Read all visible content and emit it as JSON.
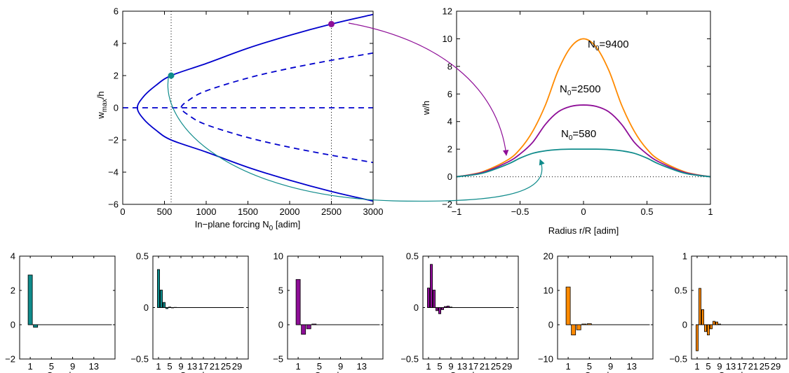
{
  "colors": {
    "blue": "#0000cc",
    "teal": "#0f8b8b",
    "purple": "#8e0e97",
    "orange": "#ff8a00",
    "axis": "#000000"
  },
  "chart_data": [
    {
      "id": "bifurcation",
      "type": "line",
      "xlabel": "In−plane forcing N",
      "xlabel_sub": "0",
      "xlabel_suffix": " [adim]",
      "ylabel": "w",
      "ylabel_sub": "max",
      "ylabel_suffix": "/h",
      "xlim": [
        0,
        3000
      ],
      "ylim": [
        -6,
        6
      ],
      "xticks": [
        0,
        500,
        1000,
        1500,
        2000,
        2500,
        3000
      ],
      "yticks": [
        -6,
        -4,
        -2,
        0,
        2,
        4,
        6
      ],
      "vlines_dotted": [
        580,
        2500
      ],
      "series": [
        {
          "style": "solid",
          "color": "blue",
          "x": [
            3000,
            2500,
            2000,
            1500,
            1000,
            580,
            400,
            250,
            175,
            250,
            400,
            580,
            1000,
            1500,
            2000,
            2500,
            3000
          ],
          "y": [
            5.8,
            5.2,
            4.5,
            3.7,
            2.75,
            2.0,
            1.4,
            0.7,
            0,
            -0.7,
            -1.4,
            -2.0,
            -2.75,
            -3.7,
            -4.5,
            -5.2,
            -5.8
          ]
        },
        {
          "style": "dashed",
          "color": "blue",
          "x": [
            3000,
            2500,
            2000,
            1500,
            1000,
            800,
            700,
            800,
            1000,
            1500,
            2000,
            2500,
            3000
          ],
          "y": [
            3.4,
            2.95,
            2.45,
            1.85,
            1.05,
            0.5,
            0,
            -0.5,
            -1.05,
            -1.85,
            -2.45,
            -2.95,
            -3.4
          ]
        },
        {
          "style": "dashed",
          "color": "blue",
          "x": [
            0,
            3000
          ],
          "y": [
            0,
            0
          ]
        }
      ],
      "markers": [
        {
          "x": 580,
          "y": 2.0,
          "color": "teal"
        },
        {
          "x": 2500,
          "y": 5.2,
          "color": "purple"
        }
      ]
    },
    {
      "id": "deflection",
      "type": "line",
      "xlabel": "Radius r/R [adim]",
      "ylabel": "w/h",
      "xlim": [
        -1,
        1
      ],
      "ylim": [
        -2,
        12
      ],
      "xticks": [
        -1,
        -0.5,
        0,
        0.5,
        1
      ],
      "yticks": [
        -2,
        0,
        2,
        4,
        6,
        8,
        10,
        12
      ],
      "hline_dotted": 0,
      "series": [
        {
          "name": "N",
          "name_sub": "0",
          "name_suffix": "=9400",
          "color": "orange",
          "x": [
            -1,
            -0.8,
            -0.6,
            -0.5,
            -0.4,
            -0.3,
            -0.2,
            -0.1,
            0,
            0.1,
            0.2,
            0.3,
            0.4,
            0.5,
            0.6,
            0.8,
            1
          ],
          "y": [
            0,
            0.35,
            1.2,
            2.0,
            3.3,
            5.2,
            7.7,
            9.4,
            10.0,
            9.4,
            7.7,
            5.2,
            3.3,
            2.0,
            1.2,
            0.35,
            0
          ]
        },
        {
          "name": "N",
          "name_sub": "0",
          "name_suffix": "=2500",
          "color": "purple",
          "x": [
            -1,
            -0.8,
            -0.6,
            -0.5,
            -0.4,
            -0.3,
            -0.2,
            -0.1,
            0,
            0.1,
            0.2,
            0.3,
            0.4,
            0.5,
            0.6,
            0.8,
            1
          ],
          "y": [
            0,
            0.3,
            1.05,
            1.65,
            2.5,
            3.8,
            4.7,
            5.1,
            5.2,
            5.1,
            4.7,
            3.8,
            2.5,
            1.65,
            1.05,
            0.3,
            0
          ]
        },
        {
          "name": "N",
          "name_sub": "0",
          "name_suffix": "=580",
          "color": "teal",
          "x": [
            -1,
            -0.8,
            -0.6,
            -0.5,
            -0.4,
            -0.3,
            -0.2,
            -0.1,
            0,
            0.1,
            0.2,
            0.3,
            0.4,
            0.5,
            0.6,
            0.8,
            1
          ],
          "y": [
            0,
            0.25,
            0.9,
            1.35,
            1.7,
            1.88,
            1.97,
            2.0,
            2.0,
            2.0,
            1.97,
            1.88,
            1.7,
            1.35,
            0.9,
            0.25,
            0
          ]
        }
      ]
    },
    {
      "id": "bar1",
      "type": "bar",
      "color": "teal",
      "xlabel": "Coord. q",
      "xlabel_sub": "i",
      "xlim": [
        -1,
        17
      ],
      "ylim": [
        -2,
        4
      ],
      "xticks": [
        1,
        5,
        9,
        13
      ],
      "yticks": [
        -2,
        0,
        2,
        4
      ],
      "x": [
        1,
        2,
        3,
        4,
        5,
        6,
        7,
        8,
        9,
        10,
        11,
        12,
        13,
        14,
        15,
        16
      ],
      "values": [
        2.9,
        -0.15,
        0,
        0,
        0,
        0,
        0,
        0,
        0,
        0,
        0,
        0,
        0,
        0,
        0,
        0
      ]
    },
    {
      "id": "bar2",
      "type": "bar",
      "color": "teal",
      "xlabel": "Coord. η",
      "xlabel_sub": "i",
      "xlim": [
        -1,
        33
      ],
      "ylim": [
        -0.5,
        0.5
      ],
      "xticks": [
        1,
        5,
        9,
        13,
        17,
        21,
        25,
        29
      ],
      "yticks": [
        -0.5,
        0,
        0.5
      ],
      "x": [
        1,
        2,
        3,
        4,
        5,
        6,
        7,
        8,
        9,
        10,
        11,
        12,
        13,
        14,
        15,
        16,
        17,
        18,
        19,
        20,
        21,
        22,
        23,
        24,
        25,
        26,
        27,
        28,
        29,
        30,
        31
      ],
      "values": [
        0.37,
        0.17,
        0.05,
        -0.01,
        0.005,
        -0.003,
        0.002,
        0,
        0,
        0,
        0,
        0,
        0,
        0,
        0,
        0,
        0,
        0,
        0,
        0,
        0,
        0,
        0,
        0,
        0,
        0,
        0,
        0,
        0,
        0,
        0
      ]
    },
    {
      "id": "bar3",
      "type": "bar",
      "color": "purple",
      "xlabel": "Coord. q",
      "xlabel_sub": "i",
      "xlim": [
        -1,
        17
      ],
      "ylim": [
        -5,
        10
      ],
      "xticks": [
        1,
        5,
        9,
        13
      ],
      "yticks": [
        -5,
        0,
        5,
        10
      ],
      "x": [
        1,
        2,
        3,
        4,
        5,
        6,
        7,
        8,
        9,
        10,
        11,
        12,
        13,
        14,
        15,
        16
      ],
      "values": [
        6.6,
        -1.4,
        -0.6,
        0.1,
        0,
        0,
        0,
        0,
        0,
        0,
        0,
        0,
        0,
        0,
        0,
        0
      ]
    },
    {
      "id": "bar4",
      "type": "bar",
      "color": "purple",
      "xlabel": "Coord. η",
      "xlabel_sub": "i",
      "xlim": [
        -1,
        33
      ],
      "ylim": [
        -0.5,
        0.5
      ],
      "xticks": [
        1,
        5,
        9,
        13,
        17,
        21,
        25,
        29
      ],
      "yticks": [
        -0.5,
        0,
        0.5
      ],
      "x": [
        1,
        2,
        3,
        4,
        5,
        6,
        7,
        8,
        9,
        10,
        11,
        12,
        13,
        14,
        15,
        16,
        17,
        18,
        19,
        20,
        21,
        22,
        23,
        24,
        25,
        26,
        27,
        28,
        29,
        30,
        31
      ],
      "values": [
        0.19,
        0.42,
        0.17,
        -0.03,
        -0.06,
        -0.02,
        0.01,
        0.015,
        0.005,
        0,
        0,
        0,
        0,
        0,
        0,
        0,
        0,
        0,
        0,
        0,
        0,
        0,
        0,
        0,
        0,
        0,
        0,
        0,
        0,
        0,
        0
      ]
    },
    {
      "id": "bar5",
      "type": "bar",
      "color": "orange",
      "xlabel": "Coord. q",
      "xlabel_sub": "i",
      "xlim": [
        -1,
        17
      ],
      "ylim": [
        -10,
        20
      ],
      "xticks": [
        1,
        5,
        9,
        13
      ],
      "yticks": [
        -10,
        0,
        10,
        20
      ],
      "x": [
        1,
        2,
        3,
        4,
        5,
        6,
        7,
        8,
        9,
        10,
        11,
        12,
        13,
        14,
        15,
        16
      ],
      "values": [
        11.0,
        -3.0,
        -1.5,
        0.2,
        0.3,
        0,
        0,
        0,
        0,
        0,
        0,
        0,
        0,
        0,
        0,
        0
      ]
    },
    {
      "id": "bar6",
      "type": "bar",
      "color": "orange",
      "xlabel": "Coord. η",
      "xlabel_sub": "i",
      "xlim": [
        -1,
        33
      ],
      "ylim": [
        -0.5,
        1
      ],
      "xticks": [
        1,
        5,
        9,
        13,
        17,
        21,
        25,
        29
      ],
      "yticks": [
        -0.5,
        0,
        0.5,
        1
      ],
      "x": [
        1,
        2,
        3,
        4,
        5,
        6,
        7,
        8,
        9,
        10,
        11,
        12,
        13,
        14,
        15,
        16,
        17,
        18,
        19,
        20,
        21,
        22,
        23,
        24,
        25,
        26,
        27,
        28,
        29,
        30,
        31
      ],
      "values": [
        -0.38,
        0.53,
        0.22,
        -0.1,
        -0.15,
        -0.06,
        0.05,
        0.04,
        0.01,
        0,
        0,
        0,
        0,
        0,
        0,
        0,
        0,
        0,
        0,
        0,
        0,
        0,
        0,
        0,
        0,
        0,
        0,
        0,
        0,
        0,
        0
      ]
    }
  ]
}
